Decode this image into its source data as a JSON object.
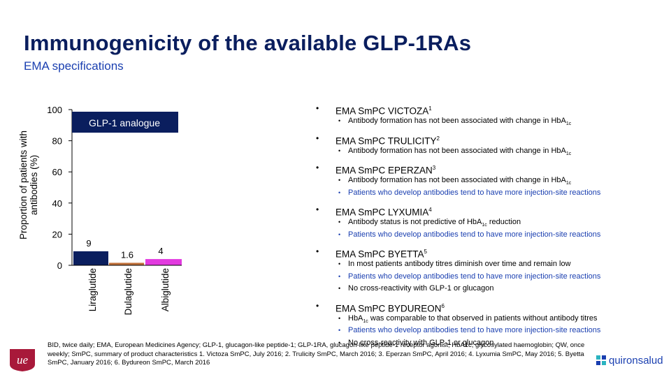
{
  "header": {
    "title": "Immunogenicity of the available GLP-1RAs",
    "subtitle": "EMA specifications"
  },
  "chart_data": {
    "type": "bar",
    "title": "",
    "ylabel": "Proportion of patients with antibodies (%)",
    "xlabel": "",
    "legend_label": "GLP-1 analogue",
    "ylim": [
      0,
      100
    ],
    "yticks": [
      0,
      20,
      40,
      60,
      80,
      100
    ],
    "categories": [
      "Liraglutide",
      "Dulaglutide",
      "Albiglutide"
    ],
    "values": [
      9,
      1.6,
      4
    ],
    "value_labels": [
      "9",
      "1.6",
      "4"
    ],
    "colors": [
      "#0a1e5e",
      "#c0703a",
      "#e23adf"
    ],
    "legend_color": "#0a1e5e",
    "grid": false
  },
  "specs": [
    {
      "title": "EMA SmPC VICTOZA",
      "ref": "1",
      "items": [
        {
          "text": "Antibody formation has not been associated with change in HbA",
          "sub": "1c",
          "tail": "",
          "highlight": false
        }
      ]
    },
    {
      "title": "EMA SmPC TRULICITY",
      "ref": "2",
      "items": [
        {
          "text": "Antibody formation has not been associated with change in HbA",
          "sub": "1c",
          "tail": "",
          "highlight": false
        }
      ]
    },
    {
      "title": "EMA SmPC EPERZAN",
      "ref": "3",
      "items": [
        {
          "text": "Antibody formation has not been associated with change in HbA",
          "sub": "1c",
          "tail": "",
          "highlight": false
        },
        {
          "text": "Patients who develop antibodies tend to have more injection-site reactions",
          "sub": "",
          "tail": "",
          "highlight": true
        }
      ]
    },
    {
      "title": "EMA SmPC LYXUMIA",
      "ref": "4",
      "items": [
        {
          "text": "Antibody status is not predictive of HbA",
          "sub": "1c",
          "tail": " reduction",
          "highlight": false
        },
        {
          "text": "Patients who develop antibodies tend to have more injection-site reactions",
          "sub": "",
          "tail": "",
          "highlight": true
        }
      ]
    },
    {
      "title": "EMA SmPC BYETTA",
      "ref": "5",
      "items": [
        {
          "text": "In most patients antibody titres diminish over time and remain low",
          "sub": "",
          "tail": "",
          "highlight": false
        },
        {
          "text": "Patients who develop antibodies tend to have more injection-site reactions",
          "sub": "",
          "tail": "",
          "highlight": true
        },
        {
          "text": "No cross-reactivity with GLP-1 or glucagon",
          "sub": "",
          "tail": "",
          "highlight": false
        }
      ]
    },
    {
      "title": "EMA SmPC BYDUREON",
      "ref": "6",
      "items": [
        {
          "text": "HbA",
          "sub": "1c",
          "tail": " was comparable to that observed in patients without antibody titres",
          "highlight": false
        },
        {
          "text": "Patients who develop antibodies tend to have more injection-site reactions",
          "sub": "",
          "tail": "",
          "highlight": true
        },
        {
          "text": "No cross-reactivity with GLP-1 or glucagon",
          "sub": "",
          "tail": "",
          "highlight": false
        }
      ]
    }
  ],
  "footnote": "BID, twice daily; EMA, European Medicines Agency; GLP-1, glucagon-like peptide-1; GLP-1RA, glucagon-like peptide-1 receptor agonist; HbA1c, glycosylated haemoglobin; QW, once weekly; SmPC, summary of product characteristics 1. Victoza SmPC, July 2016; 2. Trulicity SmPC, March 2016; 3. Eperzan SmPC, April 2016; 4. Lyxumia SmPC, May 2016; 5. Byetta SmPC, January 2016; 6. Bydureon SmPC, March 2016",
  "logos": {
    "left_text": "ue",
    "left_color": "#a8193a",
    "right_text": "quironsalud",
    "right_icon": "quironsalud-logo-icon"
  }
}
